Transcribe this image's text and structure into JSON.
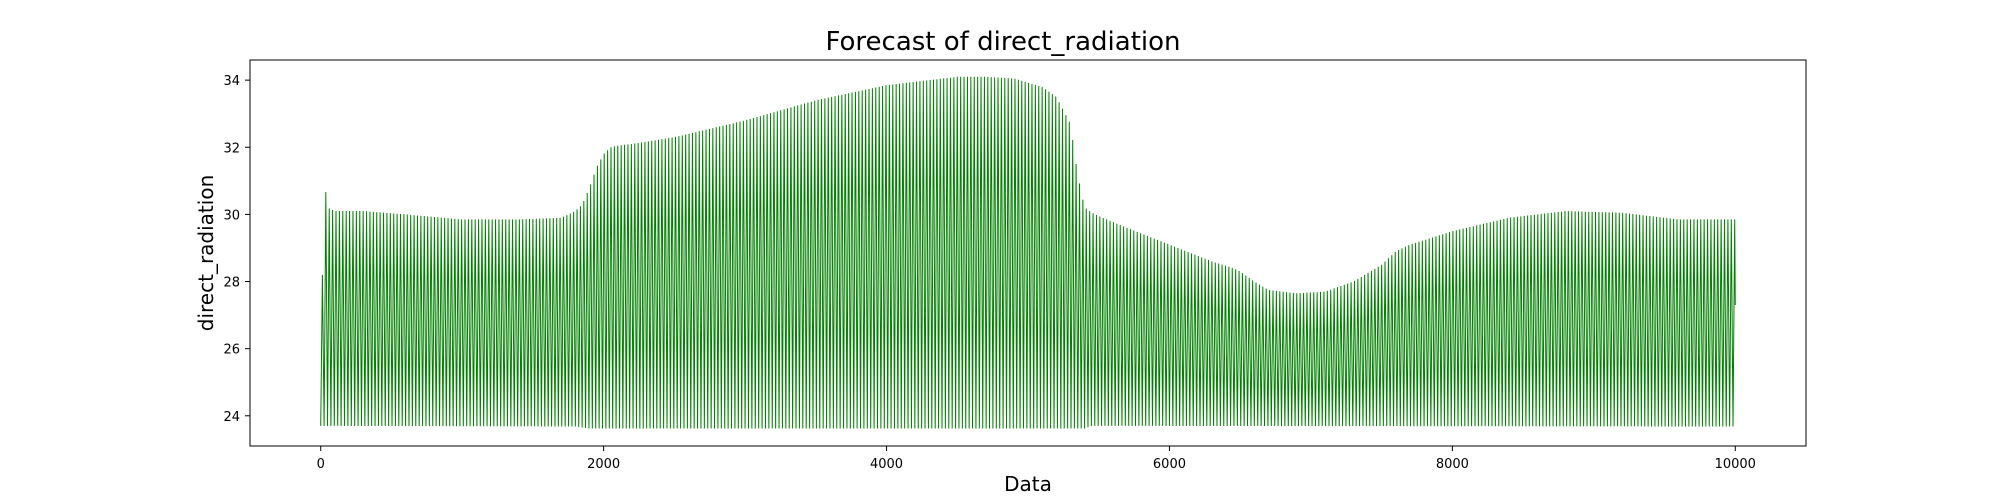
{
  "chart_data": {
    "type": "line",
    "title": "Forecast of direct_radiation",
    "xlabel": "Data",
    "ylabel": "direct_radiation",
    "xlim": [
      -500,
      10500
    ],
    "ylim": [
      23.1,
      34.6
    ],
    "xticks": [
      0,
      2000,
      4000,
      6000,
      8000,
      10000
    ],
    "yticks": [
      24,
      26,
      28,
      30,
      32,
      34
    ],
    "grid": false,
    "legend": "none",
    "series": [
      {
        "color": "#008000",
        "pattern": "oscillating between a lower and an upper envelope (period ~24 points)",
        "x_range": [
          0,
          10000
        ],
        "upper_envelope": {
          "x": [
            0,
            20,
            50,
            100,
            300,
            600,
            1000,
            1400,
            1700,
            1800,
            1850,
            1900,
            1950,
            2000,
            2050,
            2100,
            2200,
            2500,
            3000,
            3500,
            4000,
            4500,
            4700,
            4900,
            5100,
            5200,
            5300,
            5350,
            5400,
            5420,
            5450,
            5500,
            5700,
            6000,
            6300,
            6450,
            6500,
            6600,
            6700,
            6900,
            7100,
            7300,
            7500,
            7600,
            7700,
            8000,
            8400,
            8800,
            9200,
            9600,
            10000
          ],
          "y": [
            23.7,
            31.2,
            30.2,
            30.1,
            30.1,
            30.0,
            29.85,
            29.85,
            29.9,
            30.1,
            30.3,
            30.8,
            31.4,
            31.8,
            32.0,
            32.05,
            32.1,
            32.3,
            32.8,
            33.4,
            33.85,
            34.1,
            34.1,
            34.05,
            33.8,
            33.5,
            32.7,
            31.2,
            30.2,
            30.15,
            30.05,
            29.95,
            29.6,
            29.1,
            28.6,
            28.4,
            28.3,
            28.0,
            27.75,
            27.65,
            27.7,
            28.0,
            28.5,
            28.9,
            29.1,
            29.5,
            29.9,
            30.1,
            30.05,
            29.85,
            29.85
          ]
        },
        "lower_envelope": {
          "x": [
            0,
            1800,
            1900,
            5400,
            5450,
            10000
          ],
          "y": [
            23.7,
            23.68,
            23.62,
            23.62,
            23.7,
            23.68
          ]
        },
        "last_value": 27.3
      }
    ]
  }
}
